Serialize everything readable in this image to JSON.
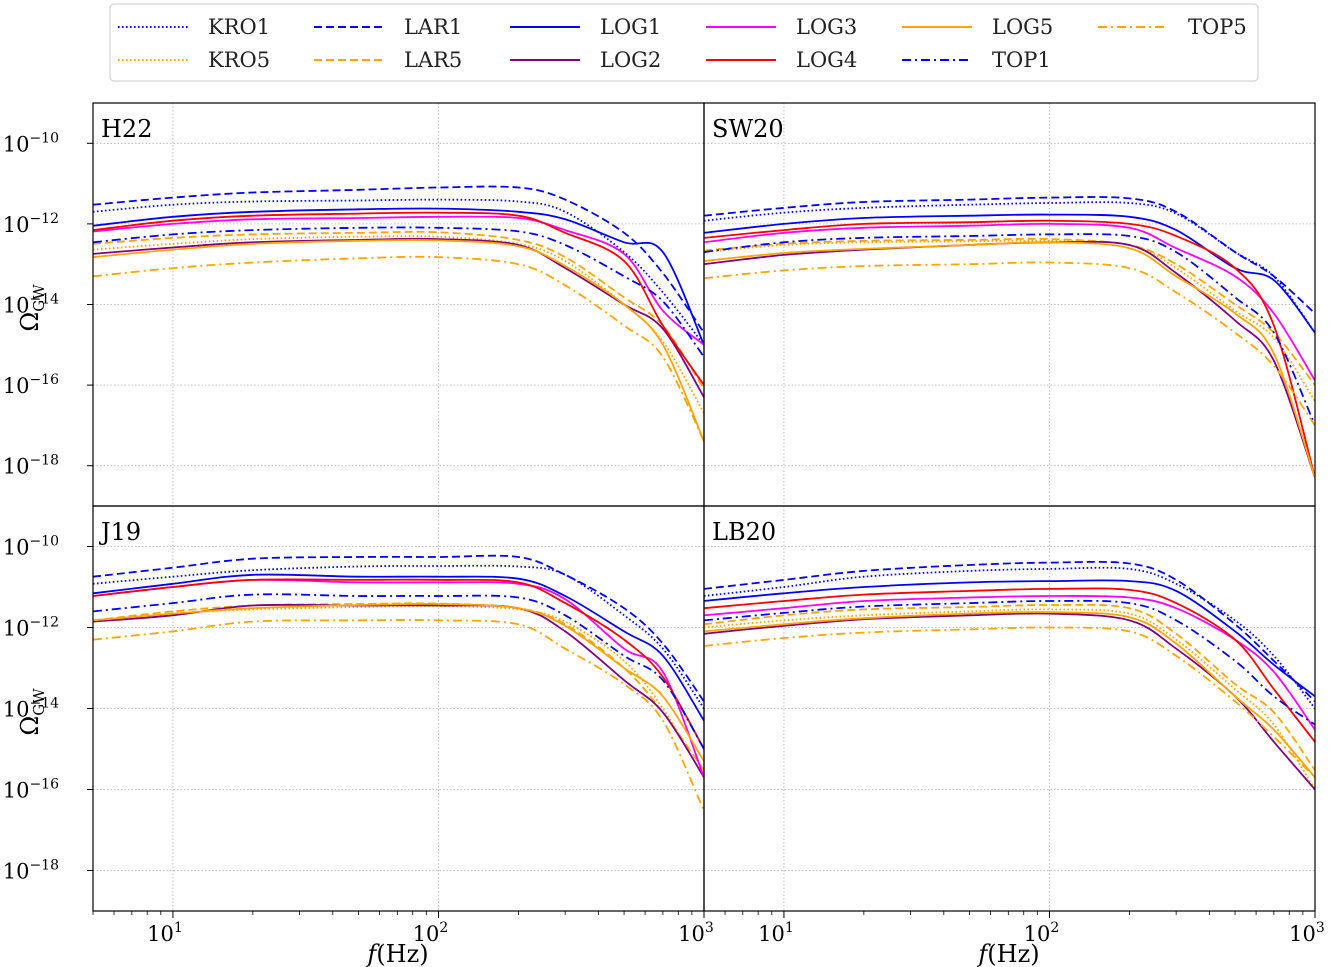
{
  "chart_data": {
    "type": "line",
    "xscale": "log",
    "yscale": "log",
    "xlim": [
      5,
      1000
    ],
    "ylim": [
      1e-19,
      1e-09
    ],
    "grid": true,
    "legend_position": "top",
    "xlabel": "f(Hz)",
    "ylabel": "Ω_GW",
    "xlabel_math": "f",
    "xlabel_unit": "(Hz)",
    "ylabel_base": "Ω",
    "ylabel_sub": "GW",
    "xticks": [
      {
        "value": 10,
        "base": "10",
        "exp": "1"
      },
      {
        "value": 100,
        "base": "10",
        "exp": "2"
      },
      {
        "value": 1000,
        "base": "10",
        "exp": "3"
      }
    ],
    "yticks": [
      {
        "value": 1e-10,
        "base": "10",
        "exp": "−10"
      },
      {
        "value": 1e-12,
        "base": "10",
        "exp": "−12"
      },
      {
        "value": 1e-14,
        "base": "10",
        "exp": "−14"
      },
      {
        "value": 1e-16,
        "base": "10",
        "exp": "−16"
      },
      {
        "value": 1e-18,
        "base": "10",
        "exp": "−18"
      }
    ],
    "series_styles": [
      {
        "name": "KRO1",
        "color": "#0000ff",
        "dash": "dotted"
      },
      {
        "name": "KRO5",
        "color": "#ffa500",
        "dash": "dotted"
      },
      {
        "name": "LAR1",
        "color": "#0000ff",
        "dash": "dashed"
      },
      {
        "name": "LAR5",
        "color": "#ffa500",
        "dash": "dashed"
      },
      {
        "name": "LOG1",
        "color": "#0000ff",
        "dash": "solid"
      },
      {
        "name": "LOG2",
        "color": "#800080",
        "dash": "solid"
      },
      {
        "name": "LOG3",
        "color": "#ff00ff",
        "dash": "solid"
      },
      {
        "name": "LOG4",
        "color": "#ff0000",
        "dash": "solid"
      },
      {
        "name": "LOG5",
        "color": "#ffa500",
        "dash": "solid"
      },
      {
        "name": "TOP1",
        "color": "#0000ff",
        "dash": "dashdot"
      },
      {
        "name": "TOP5",
        "color": "#ffa500",
        "dash": "dashdot"
      }
    ],
    "x": [
      5,
      10,
      20,
      50,
      100,
      200,
      300,
      500,
      700,
      1000
    ],
    "panels": [
      {
        "title": "H22",
        "series": [
          {
            "name": "KRO1",
            "values": [
              2e-12,
              3e-12,
              3.6e-12,
              3.8e-12,
              4e-12,
              3.6e-12,
              2e-12,
              2e-13,
              2e-14,
              1e-15
            ]
          },
          {
            "name": "KRO5",
            "values": [
              2.3e-13,
              3.2e-13,
              4.2e-13,
              4.8e-13,
              4.8e-13,
              3.2e-13,
              1.2e-13,
              1e-14,
              1.2e-15,
              2e-17
            ]
          },
          {
            "name": "LAR1",
            "values": [
              3e-12,
              4.5e-12,
              6e-12,
              7e-12,
              8e-12,
              8e-12,
              4e-12,
              6e-13,
              6e-14,
              2e-15
            ]
          },
          {
            "name": "LAR5",
            "values": [
              3.2e-13,
              4.5e-13,
              5.5e-13,
              6e-13,
              6.2e-13,
              4e-13,
              1.5e-13,
              1.5e-14,
              3e-15,
              8e-17
            ]
          },
          {
            "name": "LOG1",
            "values": [
              9e-13,
              1.5e-12,
              2e-12,
              2.3e-12,
              2.4e-12,
              2e-12,
              1.3e-12,
              3.5e-13,
              2e-13,
              1e-15
            ]
          },
          {
            "name": "LOG2",
            "values": [
              1.8e-13,
              2.6e-13,
              3.5e-13,
              4e-13,
              4.2e-13,
              3e-13,
              8e-14,
              1e-14,
              2.5e-15,
              5e-17
            ]
          },
          {
            "name": "LOG3",
            "values": [
              6.5e-13,
              1e-12,
              1.3e-12,
              1.4e-12,
              1.5e-12,
              1.4e-12,
              7e-13,
              1.8e-13,
              7e-15,
              1e-15
            ]
          },
          {
            "name": "LOG4",
            "values": [
              7e-13,
              1.2e-12,
              1.6e-12,
              1.8e-12,
              1.9e-12,
              1.6e-12,
              6e-13,
              1.2e-13,
              3e-15,
              1e-16
            ]
          },
          {
            "name": "LOG5",
            "values": [
              1.5e-13,
              2.3e-13,
              3.2e-13,
              3.8e-13,
              3.9e-13,
              2.8e-13,
              9e-14,
              1e-14,
              1e-15,
              4e-18
            ]
          },
          {
            "name": "TOP1",
            "values": [
              3.5e-13,
              5.5e-13,
              7e-13,
              8e-13,
              8e-13,
              6.5e-13,
              3e-13,
              5e-14,
              1.2e-14,
              5e-16
            ]
          },
          {
            "name": "TOP5",
            "values": [
              5e-14,
              8e-14,
              1.1e-13,
              1.4e-13,
              1.5e-13,
              1e-13,
              3e-14,
              3e-15,
              5e-16,
              4e-18
            ]
          }
        ]
      },
      {
        "title": "SW20",
        "series": [
          {
            "name": "KRO1",
            "values": [
              1.2e-12,
              1.9e-12,
              2.5e-12,
              3e-12,
              3.3e-12,
              3.3e-12,
              1.8e-12,
              2e-13,
              5e-14,
              2e-15
            ]
          },
          {
            "name": "KRO5",
            "values": [
              2e-13,
              3e-13,
              3.5e-13,
              3.7e-13,
              3.8e-13,
              3e-13,
              8e-14,
              7e-15,
              1.5e-15,
              4e-17
            ]
          },
          {
            "name": "LAR1",
            "values": [
              1.6e-12,
              2.5e-12,
              3.5e-12,
              4e-12,
              4.5e-12,
              4.3e-12,
              2e-12,
              2e-13,
              5e-14,
              6e-15
            ]
          },
          {
            "name": "LAR5",
            "values": [
              2.2e-13,
              3.2e-13,
              3.8e-13,
              4e-13,
              4.2e-13,
              3e-13,
              1e-13,
              1e-14,
              2e-15,
              1e-16
            ]
          },
          {
            "name": "LOG1",
            "values": [
              6e-13,
              1e-12,
              1.4e-12,
              1.6e-12,
              1.7e-12,
              1.5e-12,
              7e-13,
              8e-14,
              4e-14,
              2e-15
            ]
          },
          {
            "name": "LOG2",
            "values": [
              1e-13,
              1.7e-13,
              2.3e-13,
              3e-13,
              3.5e-13,
              3e-13,
              6e-14,
              4e-15,
              4e-16,
              5e-19
            ]
          },
          {
            "name": "LOG3",
            "values": [
              3.5e-13,
              6e-13,
              8e-13,
              9e-13,
              1e-12,
              8e-13,
              2.5e-13,
              5e-14,
              6e-15,
              1.3e-16
            ]
          },
          {
            "name": "LOG4",
            "values": [
              4.5e-13,
              7e-13,
              1e-12,
              1.1e-12,
              1.2e-12,
              1e-12,
              5e-13,
              8e-14,
              3e-15,
              5e-19
            ]
          },
          {
            "name": "LOG5",
            "values": [
              1.2e-13,
              1.9e-13,
              2.4e-13,
              3e-13,
              3.5e-13,
              2.5e-13,
              5e-14,
              6e-15,
              6e-16,
              5e-19
            ]
          },
          {
            "name": "TOP1",
            "values": [
              2e-13,
              3.5e-13,
              4.5e-13,
              5e-13,
              5.5e-13,
              5e-13,
              2e-13,
              1.5e-14,
              2e-15,
              1e-17
            ]
          },
          {
            "name": "TOP5",
            "values": [
              4.5e-14,
              7e-14,
              9e-14,
              1e-13,
              1.1e-13,
              8e-14,
              2e-14,
              2e-15,
              3e-16,
              1e-17
            ]
          }
        ]
      },
      {
        "title": "J19",
        "series": [
          {
            "name": "KRO1",
            "values": [
              1.2e-11,
              1.8e-11,
              2.6e-11,
              3.2e-11,
              3.3e-11,
              3.2e-11,
              2e-11,
              2e-12,
              3e-13,
              1e-14
            ]
          },
          {
            "name": "KRO5",
            "values": [
              1.4e-12,
              2.2e-12,
              2.8e-12,
              3.2e-12,
              3.4e-12,
              2.8e-12,
              1.4e-12,
              1.5e-13,
              1e-14,
              2e-16
            ]
          },
          {
            "name": "LAR1",
            "values": [
              1.8e-11,
              3e-11,
              5e-11,
              5.5e-11,
              5.5e-11,
              5.5e-11,
              2e-11,
              3e-12,
              4e-13,
              1.5e-14
            ]
          },
          {
            "name": "LAR5",
            "values": [
              1.5e-12,
              2.5e-12,
              3.5e-12,
              3.8e-12,
              3.9e-12,
              3e-12,
              1.2e-12,
              1e-13,
              8e-15,
              3e-16
            ]
          },
          {
            "name": "LOG1",
            "values": [
              7e-12,
              1.2e-11,
              2e-11,
              1.8e-11,
              1.8e-11,
              1.6e-11,
              6e-12,
              8e-13,
              2e-13,
              5e-15
            ]
          },
          {
            "name": "LOG2",
            "values": [
              1.4e-12,
              2e-12,
              3.5e-12,
              3.5e-12,
              3.5e-12,
              3e-12,
              8e-13,
              5e-14,
              8e-15,
              2e-16
            ]
          },
          {
            "name": "LOG3",
            "values": [
              6e-12,
              1e-11,
              1.5e-11,
              1.3e-11,
              1.3e-11,
              1.2e-11,
              5e-12,
              3e-13,
              8e-14,
              2e-16
            ]
          },
          {
            "name": "LOG4",
            "values": [
              6e-12,
              1e-11,
              1.5e-11,
              1.5e-11,
              1.5e-11,
              1.3e-11,
              4e-12,
              5e-13,
              6e-14,
              1e-15
            ]
          },
          {
            "name": "LOG5",
            "values": [
              1.5e-12,
              2.2e-12,
              3e-12,
              3.6e-12,
              3.8e-12,
              3e-12,
              1.1e-12,
              1e-13,
              2e-14,
              5e-16
            ]
          },
          {
            "name": "TOP1",
            "values": [
              2.5e-12,
              4e-12,
              6.5e-12,
              6e-12,
              6e-12,
              5.5e-12,
              2e-12,
              2e-13,
              5e-14,
              1e-15
            ]
          },
          {
            "name": "TOP5",
            "values": [
              5e-13,
              8e-13,
              1.4e-12,
              1.5e-12,
              1.5e-12,
              1.2e-12,
              3e-13,
              4e-14,
              5e-15,
              3e-17
            ]
          }
        ]
      },
      {
        "title": "LB20",
        "series": [
          {
            "name": "KRO1",
            "values": [
              6e-12,
              1e-11,
              1.8e-11,
              2.5e-11,
              2.8e-11,
              2.8e-11,
              1.2e-11,
              1.5e-12,
              2e-13,
              1e-14
            ]
          },
          {
            "name": "KRO5",
            "values": [
              1e-12,
              1.5e-12,
              2e-12,
              2.5e-12,
              2.8e-12,
              2.2e-12,
              5e-13,
              3e-14,
              4e-15,
              1e-16
            ]
          },
          {
            "name": "LAR1",
            "values": [
              9e-12,
              1.5e-11,
              2.5e-11,
              3.5e-11,
              4e-11,
              3.8e-11,
              1.5e-11,
              1.2e-12,
              1.5e-13,
              1.5e-14
            ]
          },
          {
            "name": "LAR5",
            "values": [
              1.2e-12,
              2e-12,
              2.8e-12,
              3.2e-12,
              3.6e-12,
              3e-12,
              7e-13,
              4e-14,
              8e-15,
              3e-16
            ]
          },
          {
            "name": "LOG1",
            "values": [
              4.5e-12,
              7e-12,
              1e-11,
              1.3e-11,
              1.4e-11,
              1.4e-11,
              8e-12,
              8e-13,
              1.2e-13,
              2e-14
            ]
          },
          {
            "name": "LOG2",
            "values": [
              7e-13,
              1.1e-12,
              1.6e-12,
              2e-12,
              2.2e-12,
              1.5e-12,
              3e-13,
              2e-14,
              1.5e-15,
              1e-16
            ]
          },
          {
            "name": "LOG3",
            "values": [
              2e-12,
              3e-12,
              4.5e-12,
              5.5e-12,
              6e-12,
              5.5e-12,
              3e-12,
              5e-13,
              8e-14,
              3e-15
            ]
          },
          {
            "name": "LOG4",
            "values": [
              3e-12,
              4.5e-12,
              6.5e-12,
              8e-12,
              9e-12,
              8.5e-12,
              4e-12,
              5e-13,
              3e-14,
              1.5e-15
            ]
          },
          {
            "name": "LOG5",
            "values": [
              8e-13,
              1.2e-12,
              1.7e-12,
              2.2e-12,
              2.4e-12,
              1.8e-12,
              4e-13,
              2e-14,
              3e-15,
              2e-16
            ]
          },
          {
            "name": "TOP1",
            "values": [
              1.5e-12,
              2.3e-12,
              3.3e-12,
              4e-12,
              4.5e-12,
              4e-12,
              1.5e-12,
              1.5e-13,
              2e-14,
              4e-15
            ]
          },
          {
            "name": "TOP5",
            "values": [
              3.5e-13,
              5.5e-13,
              7.5e-13,
              9e-13,
              1e-12,
              8e-13,
              2e-13,
              1.5e-14,
              2e-15,
              2e-16
            ]
          }
        ]
      }
    ]
  }
}
